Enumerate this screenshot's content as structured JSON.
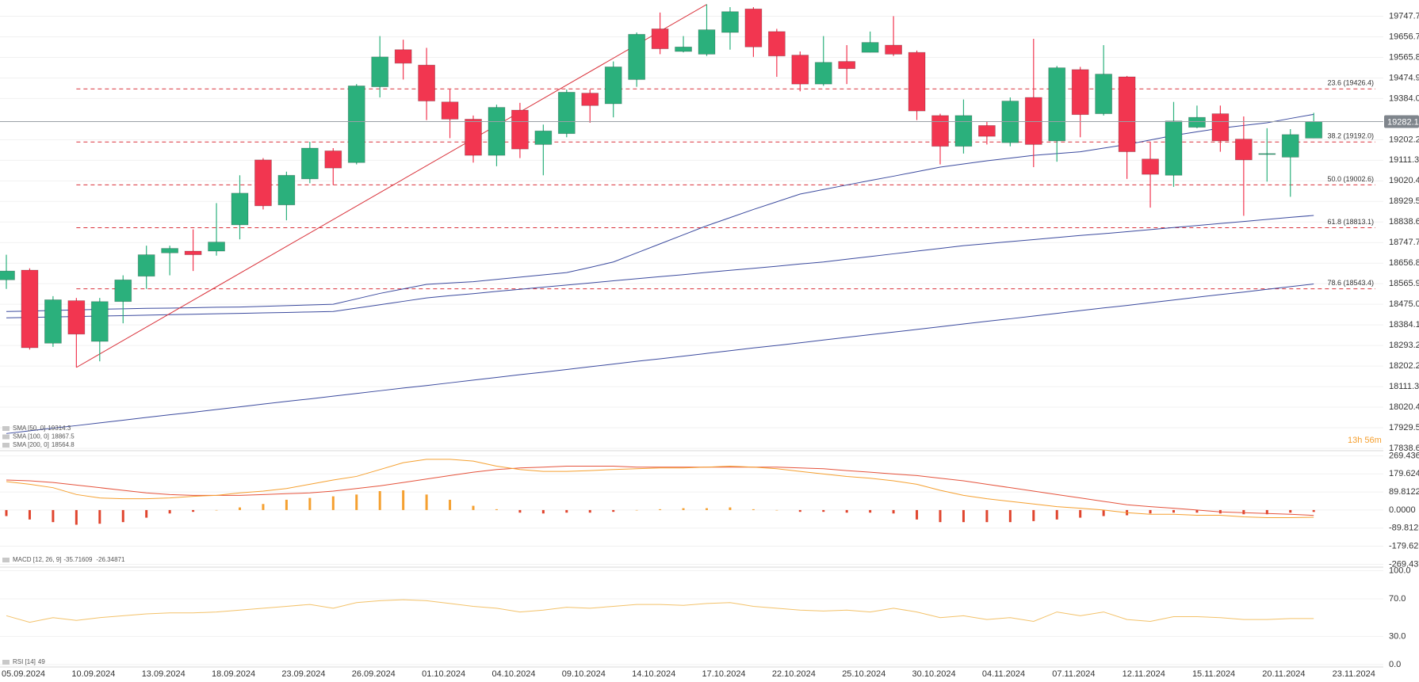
{
  "chart_data": [
    {
      "type": "candlestick",
      "categories": [
        "05.09.2024",
        null,
        null,
        "10.09.2024",
        null,
        null,
        "13.09.2024",
        null,
        null,
        "18.09.2024",
        null,
        null,
        "23.09.2024",
        null,
        null,
        "26.09.2024",
        null,
        null,
        "01.10.2024",
        null,
        null,
        "04.10.2024",
        null,
        null,
        "09.10.2024",
        null,
        null,
        "14.10.2024",
        null,
        null,
        "17.10.2024",
        null,
        null,
        "22.10.2024",
        null,
        null,
        "25.10.2024",
        null,
        null,
        "30.10.2024",
        null,
        null,
        "04.11.2024",
        null,
        null,
        "07.11.2024",
        null,
        null,
        "12.11.2024",
        null,
        null,
        "15.11.2024",
        null,
        null,
        "20.11.2024",
        null,
        null,
        "23.11.2024"
      ],
      "open": [
        18583,
        18626,
        18303,
        18491,
        18311,
        18487,
        18599,
        18702,
        18710,
        18710,
        18826,
        19113,
        18914,
        19029,
        19153,
        19101,
        19436,
        19600,
        19532,
        19369,
        19293,
        19133,
        19333,
        19181,
        19229,
        19408,
        19361,
        19468,
        19692,
        19592,
        19580,
        19676,
        19780,
        19680,
        19576,
        19448,
        19548,
        19588,
        19620,
        19588,
        19309,
        19173,
        19265,
        19189,
        19389,
        19197,
        19512,
        19317,
        19480,
        19117,
        19045,
        19257,
        19317,
        19205,
        19141,
        19125,
        19209,
        null
      ],
      "high": [
        18694,
        18634,
        18511,
        18503,
        18503,
        18603,
        18734,
        18734,
        18806,
        18922,
        19045,
        19121,
        19061,
        19193,
        19165,
        19448,
        19660,
        19644,
        19608,
        19424,
        19309,
        19357,
        19365,
        19269,
        19424,
        19424,
        19548,
        19676,
        19764,
        19660,
        19800,
        19788,
        19788,
        19692,
        19592,
        19660,
        19620,
        19680,
        19748,
        19596,
        19317,
        19380,
        19281,
        19389,
        19648,
        19528,
        19524,
        19620,
        19484,
        19193,
        19369,
        19353,
        19353,
        19305,
        19253,
        19249,
        19321,
        null
      ],
      "low": [
        18543,
        18275,
        18287,
        18196,
        18223,
        18391,
        18543,
        18603,
        18622,
        18690,
        18762,
        18894,
        18846,
        19010,
        19002,
        19093,
        19389,
        19468,
        19289,
        19209,
        19101,
        19085,
        19121,
        19045,
        19213,
        19277,
        19301,
        19436,
        19580,
        19588,
        19572,
        19600,
        19568,
        19480,
        19416,
        19440,
        19448,
        19588,
        19572,
        19289,
        19093,
        19141,
        19181,
        19173,
        19081,
        19105,
        19213,
        19309,
        19029,
        18902,
        18994,
        19253,
        19149,
        18866,
        19017,
        18950,
        19209,
        null
      ],
      "close": [
        18622,
        18283,
        18495,
        18343,
        18487,
        18583,
        18694,
        18722,
        18694,
        18750,
        18966,
        18910,
        19045,
        19165,
        19077,
        19440,
        19568,
        19540,
        19373,
        19293,
        19133,
        19345,
        19161,
        19241,
        19412,
        19353,
        19524,
        19668,
        19604,
        19612,
        19688,
        19768,
        19612,
        19572,
        19448,
        19544,
        19516,
        19632,
        19580,
        19329,
        19173,
        19309,
        19217,
        19373,
        19181,
        19520,
        19313,
        19492,
        19149,
        19049,
        19285,
        19301,
        19197,
        19113,
        19141,
        19225,
        19282.1,
        null
      ],
      "up_color": "#2bb07c",
      "down_color": "#f23650",
      "ylim": [
        17838.6,
        19747.7
      ],
      "yticks": [
        19747.7,
        19656.7,
        19565.8,
        19474.9,
        {
          "value": 19384,
          "label": "19384.0"
        },
        19202.2,
        19111.3,
        19020.4,
        18929.5,
        18838.6,
        18747.7,
        18656.8,
        18565.9,
        {
          "value": 18475,
          "label": "18475.0"
        },
        18384.1,
        18293.2,
        18202.2,
        18111.3,
        18020.4,
        17929.5,
        17838.6
      ],
      "grid": true,
      "series": [
        {
          "name": "SMA [200, 0]",
          "color": "#3b4a9e",
          "values": [
            17904,
            17916,
            17928,
            17939,
            17951,
            17963,
            17975,
            17987,
            17998,
            18010,
            18022,
            18034,
            18046,
            18057,
            18069,
            18081,
            18093,
            18105,
            18116,
            18128,
            18140,
            18152,
            18164,
            18175,
            18187,
            18199,
            18211,
            18223,
            18234,
            18246,
            18258,
            18270,
            18282,
            18293,
            18305,
            18317,
            18329,
            18341,
            18352,
            18364,
            18376,
            18388,
            18400,
            18411,
            18423,
            18435,
            18447,
            18459,
            18470,
            18482,
            18494,
            18506,
            18518,
            18529,
            18541,
            18553,
            18564.8,
            null
          ]
        },
        {
          "name": "SMA [100, 0]",
          "color": "#3b4a9e",
          "values": [
            18415,
            18417,
            18419,
            18421,
            18423,
            18425,
            18427,
            18429,
            18431,
            18433,
            18435,
            18437,
            18439,
            18441,
            18443,
            18458,
            18473,
            18488,
            18503,
            18513,
            18522,
            18532,
            18541,
            18551,
            18560,
            18569,
            18579,
            18588,
            18597,
            18606,
            18616,
            18625,
            18634,
            18643,
            18653,
            18662,
            18674,
            18686,
            18698,
            18710,
            18722,
            18734,
            18743,
            18752,
            18761,
            18770,
            18779,
            18787,
            18796,
            18805,
            18814,
            18823,
            18832,
            18841,
            18850,
            18859,
            18867.5,
            null
          ]
        },
        {
          "name": "SMA [50, 0]",
          "color": "#3b4a9e",
          "values": [
            18443,
            18445,
            18448,
            18450,
            18453,
            18455,
            18457,
            18458,
            18460,
            18462,
            18463,
            18466,
            18469,
            18472,
            18475,
            18499,
            18523,
            18543,
            18563,
            18569,
            18575,
            18585,
            18595,
            18605,
            18615,
            18638,
            18662,
            18702,
            18742,
            18782,
            18822,
            18858,
            18894,
            18928,
            18962,
            18982,
            19002,
            19022,
            19041,
            19061,
            19081,
            19095,
            19109,
            19121,
            19133,
            19141,
            19149,
            19165,
            19181,
            19201,
            19221,
            19237,
            19253,
            19265,
            19277,
            19296,
            19314.3,
            null
          ]
        }
      ],
      "fib_color": "#d9313a",
      "fib_levels": [
        {
          "value": 19426.4,
          "label": "23.6 (19426.4)"
        },
        {
          "value": 19192,
          "label": "38.2 (19192.0)"
        },
        {
          "value": 19002.6,
          "label": "50.0 (19002.6)"
        },
        {
          "value": 18813.1,
          "label": "61.8 (18813.1)"
        },
        {
          "value": 18543.4,
          "label": "78.6 (18543.4)"
        }
      ],
      "trendline": {
        "color": "#d9313a",
        "x": [
          3,
          30
        ],
        "values": [
          18196,
          19800
        ]
      },
      "countdown": "13h 56m"
    },
    {
      "type": "macd",
      "title": "MACD [12, 26, 9]",
      "macd": {
        "color": "#f5a030",
        "values": [
          141,
          128,
          111,
          77,
          60,
          56,
          56,
          60,
          68,
          73,
          85,
          94,
          107,
          128,
          149,
          167,
          201,
          235,
          252,
          252,
          243,
          218,
          201,
          192,
          192,
          196,
          201,
          205,
          209,
          209,
          213,
          218,
          213,
          205,
          192,
          179,
          167,
          158,
          145,
          128,
          98,
          73,
          56,
          43,
          30,
          17,
          9,
          0,
          -13,
          -21,
          -21,
          -26,
          -26,
          -34,
          -38,
          -38,
          -35.71609
        ]
      },
      "signal": {
        "color": "#e5533c",
        "values": [
          149,
          145,
          137,
          124,
          111,
          98,
          85,
          77,
          73,
          73,
          73,
          77,
          81,
          85,
          94,
          107,
          120,
          137,
          154,
          171,
          188,
          201,
          209,
          213,
          218,
          218,
          218,
          213,
          213,
          213,
          213,
          213,
          213,
          213,
          209,
          205,
          196,
          188,
          179,
          171,
          158,
          145,
          128,
          111,
          94,
          77,
          60,
          43,
          26,
          17,
          9,
          0,
          -9,
          -13,
          -17,
          -21,
          -26.34871
        ]
      },
      "histogram": {
        "up_color": "#f5a030",
        "down_color": "#e0452e",
        "values": [
          -30,
          -47,
          -60,
          -73,
          -68,
          -60,
          -38,
          -17,
          -9,
          0,
          13,
          30,
          51,
          60,
          68,
          77,
          94,
          98,
          77,
          51,
          21,
          4,
          -13,
          -17,
          -13,
          -13,
          -9,
          0,
          4,
          9,
          9,
          13,
          4,
          0,
          -9,
          -9,
          -13,
          -13,
          -17,
          -47,
          -60,
          -60,
          -60,
          -60,
          -55,
          -47,
          -38,
          -30,
          -26,
          -17,
          -13,
          -13,
          -17,
          -21,
          -21,
          -13,
          -9.4
        ]
      },
      "ylim": [
        -269.437,
        269.4368
      ],
      "yticks": [
        269.4368,
        179.6245,
        89.81227,
        {
          "value": 0,
          "label": "0.0000"
        },
        -89.8123,
        -179.625,
        -269.437
      ],
      "grid": true
    },
    {
      "type": "line",
      "title": "RSI [14]",
      "color": "#f3c26a",
      "values": [
        52,
        45,
        50,
        47,
        50,
        52,
        54,
        55,
        55,
        56,
        58,
        60,
        62,
        64,
        60,
        66,
        68,
        69,
        68,
        65,
        62,
        60,
        56,
        58,
        61,
        60,
        62,
        64,
        64,
        63,
        65,
        66,
        62,
        60,
        58,
        57,
        58,
        56,
        60,
        56,
        50,
        52,
        48,
        50,
        46,
        56,
        52,
        56,
        48,
        46,
        51,
        51,
        50,
        48,
        48,
        49,
        49.0
      ],
      "ylim": [
        0,
        100
      ],
      "yticks": [
        {
          "value": 100,
          "label": "100.0"
        },
        {
          "value": 70,
          "label": "70.0"
        },
        {
          "value": 30,
          "label": "30.0"
        },
        {
          "value": 0,
          "label": "0.0"
        }
      ],
      "grid": true
    }
  ]
}
